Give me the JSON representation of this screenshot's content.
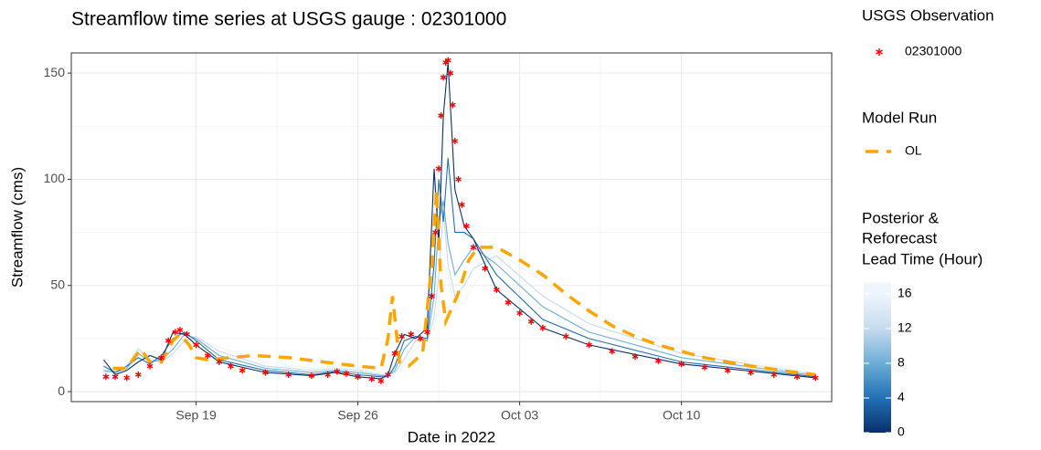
{
  "chart_data": {
    "type": "line",
    "title": "Streamflow time series at USGS gauge : 02301000",
    "x_label": "Date in 2022",
    "y_label": "Streamflow (cms)",
    "xlim": [
      13.6,
      46.5
    ],
    "ylim": [
      -4.7,
      159.5
    ],
    "xticks": [
      {
        "value": 19,
        "label": "Sep 19"
      },
      {
        "value": 26,
        "label": "Sep 26"
      },
      {
        "value": 33,
        "label": "Oct 03"
      },
      {
        "value": 40,
        "label": "Oct 10"
      }
    ],
    "yticks": [
      0,
      50,
      100,
      150
    ],
    "grid": true,
    "observation": {
      "legend_title": "USGS Observation",
      "name": "02301000",
      "color": "#ff0000",
      "x": [
        15.1,
        15.5,
        16.0,
        16.5,
        17.0,
        17.5,
        17.8,
        18.1,
        18.3,
        18.6,
        19.0,
        19.5,
        20.0,
        20.5,
        21.0,
        22.0,
        23.0,
        24.0,
        24.7,
        25.1,
        25.5,
        26.0,
        26.6,
        27.0,
        27.3,
        27.6,
        27.9,
        28.3,
        28.7,
        29.0,
        29.2,
        29.35,
        29.5,
        29.6,
        29.7,
        29.8,
        29.9,
        30.0,
        30.1,
        30.2,
        30.35,
        30.5,
        30.7,
        31.0,
        31.5,
        32.0,
        32.5,
        33.0,
        33.5,
        34.0,
        35.0,
        36.0,
        37.0,
        38.0,
        39.0,
        40.0,
        41.0,
        42.0,
        43.0,
        44.0,
        45.0,
        45.8
      ],
      "values": [
        7,
        7,
        6.5,
        8,
        12,
        16,
        24,
        28,
        29,
        27,
        22,
        17,
        14,
        12,
        10,
        9,
        8,
        7.5,
        8,
        9.5,
        8.5,
        7,
        6,
        5,
        8,
        18,
        26,
        27,
        25,
        28,
        45,
        75,
        105,
        130,
        148,
        155,
        156,
        150,
        135,
        118,
        100,
        88,
        78,
        68,
        58,
        48,
        42,
        37,
        33,
        30,
        26,
        22,
        19,
        16.5,
        14.5,
        13,
        11.5,
        10,
        9,
        8,
        7,
        6.5
      ]
    },
    "model_run": {
      "legend_title": "Model Run",
      "name": "OL",
      "color": "#ffa500",
      "x": [
        15.4,
        16.0,
        16.6,
        17.0,
        17.5,
        18.0,
        18.3,
        18.7,
        19.0,
        19.5,
        20.5,
        21.5,
        23.0,
        24.5,
        26.0,
        27.0,
        27.3,
        27.5,
        27.8,
        28.2,
        28.8,
        29.2,
        29.4,
        29.6,
        29.8,
        30.3,
        30.8,
        31.2,
        32.0,
        33.0,
        34.0,
        35.0,
        36.0,
        37.0,
        38.0,
        39.0,
        40.0,
        41.0,
        42.0,
        43.0,
        44.0,
        45.0,
        45.8
      ],
      "values": [
        11,
        11,
        20,
        14,
        14,
        24,
        27,
        22,
        16,
        15,
        16,
        17,
        16,
        14,
        12,
        11,
        25,
        45,
        14,
        12,
        18,
        60,
        95,
        50,
        33,
        45,
        62,
        68,
        68,
        62,
        55,
        46,
        38,
        31,
        26,
        22,
        19,
        16,
        14,
        12,
        10.5,
        9,
        8
      ]
    },
    "lead_time_runs": {
      "title": [
        "Posterior &",
        "Reforecast",
        "Lead Time (Hour)"
      ],
      "colorbar_lim": [
        0,
        17.3
      ],
      "colorbar_ticks": [
        0,
        4,
        8,
        12,
        16
      ],
      "x": [
        15.0,
        15.5,
        16.0,
        16.5,
        17.0,
        17.5,
        18.0,
        18.5,
        19.0,
        20.0,
        22.0,
        24.0,
        25.0,
        26.0,
        27.0,
        27.3,
        27.6,
        28.0,
        28.5,
        29.0,
        29.3,
        29.5,
        29.7,
        29.9,
        30.2,
        30.6,
        31.0,
        32.0,
        34.0,
        36.0,
        40.0,
        45.8
      ],
      "series": [
        {
          "lead_time": 16,
          "color": "#eef5fc",
          "values": [
            9,
            11,
            13,
            21,
            16,
            14,
            17,
            20,
            25,
            21,
            14,
            11,
            12,
            11,
            9,
            9,
            9,
            12,
            20,
            24,
            30,
            40,
            60,
            55,
            38,
            42,
            50,
            66,
            52,
            38,
            20,
            8.5
          ]
        },
        {
          "lead_time": 12,
          "color": "#c6dbef",
          "values": [
            9,
            10,
            12,
            20,
            15,
            14,
            18,
            24,
            26,
            19,
            12,
            10,
            11,
            10,
            8,
            8,
            9,
            15,
            24,
            24,
            35,
            55,
            85,
            60,
            45,
            50,
            58,
            64,
            45,
            32,
            18,
            8
          ]
        },
        {
          "lead_time": 8,
          "color": "#6baed6",
          "values": [
            10,
            9,
            11,
            18,
            14,
            15,
            20,
            27,
            25,
            17,
            11,
            9,
            10,
            9,
            7.5,
            7.5,
            10,
            20,
            26,
            24,
            45,
            80,
            90,
            70,
            55,
            62,
            68,
            60,
            40,
            28,
            16,
            7.5
          ]
        },
        {
          "lead_time": 4,
          "color": "#2171b5",
          "values": [
            12,
            9,
            12,
            16,
            13,
            17,
            25,
            28,
            24,
            15,
            10,
            8,
            9.5,
            8,
            7,
            7,
            12,
            24,
            26,
            25,
            60,
            100,
            80,
            110,
            75,
            75,
            72,
            55,
            34,
            25,
            14,
            7
          ]
        },
        {
          "lead_time": 0,
          "color": "#08306b",
          "values": [
            15,
            8,
            10,
            14,
            17,
            15,
            28,
            27,
            22,
            14,
            9,
            7.5,
            9,
            7,
            6,
            8,
            18,
            27,
            25,
            30,
            105,
            70,
            130,
            155,
            95,
            78,
            72,
            48,
            30,
            22,
            13,
            6.5
          ]
        }
      ]
    }
  }
}
